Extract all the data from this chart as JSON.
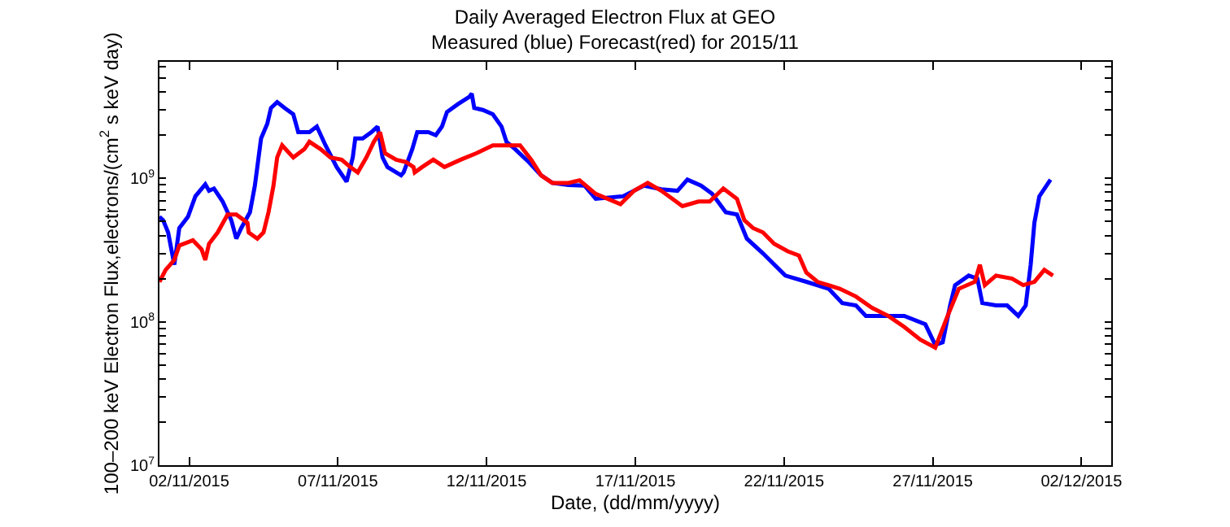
{
  "chart_data": {
    "type": "line",
    "title": "Daily Averaged Electron Flux at GEO",
    "subtitle": "Measured (blue) Forecast(red) for 2015/11",
    "xlabel": "Date, (dd/mm/yyyy)",
    "ylabel": "100–200 keV Electron Flux,electrons/(cm$^{2}$ s keV day)",
    "log": "y",
    "grid": false,
    "line_style": "solid",
    "xlim": [
      "2015-11-01",
      "2015-12-03"
    ],
    "xticks": [
      {
        "value": "2015-11-02",
        "label": "02/11/2015"
      },
      {
        "value": "2015-11-07",
        "label": "07/11/2015"
      },
      {
        "value": "2015-11-12",
        "label": "12/11/2015"
      },
      {
        "value": "2015-11-17",
        "label": "17/11/2015"
      },
      {
        "value": "2015-11-22",
        "label": "22/11/2015"
      },
      {
        "value": "2015-11-27",
        "label": "27/11/2015"
      },
      {
        "value": "2015-12-02",
        "label": "02/12/2015"
      }
    ],
    "ylim": [
      10000000.0,
      6500000000.0
    ],
    "yticks": [
      {
        "value": 10000000.0,
        "label": "10$^{7}$"
      },
      {
        "value": 20000000.0,
        "label": null
      },
      {
        "value": 30000000.0,
        "label": null
      },
      {
        "value": 40000000.0,
        "label": null
      },
      {
        "value": 50000000.0,
        "label": null
      },
      {
        "value": 60000000.0,
        "label": null
      },
      {
        "value": 70000000.0,
        "label": null
      },
      {
        "value": 80000000.0,
        "label": null
      },
      {
        "value": 90000000.0,
        "label": null
      },
      {
        "value": 100000000.0,
        "label": "10$^{8}$"
      },
      {
        "value": 200000000.0,
        "label": null
      },
      {
        "value": 300000000.0,
        "label": null
      },
      {
        "value": 400000000.0,
        "label": null
      },
      {
        "value": 500000000.0,
        "label": null
      },
      {
        "value": 600000000.0,
        "label": null
      },
      {
        "value": 700000000.0,
        "label": null
      },
      {
        "value": 800000000.0,
        "label": null
      },
      {
        "value": 900000000.0,
        "label": null
      },
      {
        "value": 1000000000.0,
        "label": "10$^{9}$"
      },
      {
        "value": 2000000000.0,
        "label": null
      },
      {
        "value": 3000000000.0,
        "label": null
      },
      {
        "value": 4000000000.0,
        "label": null
      },
      {
        "value": 5000000000.0,
        "label": null
      },
      {
        "value": 6000000000.0,
        "label": null
      }
    ],
    "series": [
      {
        "color": "#0000ff",
        "x": [
          "2015-11-01T00:00",
          "2015-11-01T03:00",
          "2015-11-01T07:00",
          "2015-11-01T12:00",
          "2015-11-01T16:00",
          "2015-11-01T23:00",
          "2015-11-02T05:00",
          "2015-11-02T13:00",
          "2015-11-02T16:00",
          "2015-11-02T20:00",
          "2015-11-03T03:00",
          "2015-11-03T10:00",
          "2015-11-03T14:00",
          "2015-11-03T18:00",
          "2015-11-04T01:00",
          "2015-11-04T05:00",
          "2015-11-04T10:00",
          "2015-11-04T15:00",
          "2015-11-04T18:00",
          "2015-11-04T23:00",
          "2015-11-05T05:00",
          "2015-11-05T12:00",
          "2015-11-05T16:00",
          "2015-11-06T01:00",
          "2015-11-06T07:00",
          "2015-11-06T14:00",
          "2015-11-06T23:00",
          "2015-11-07T07:00",
          "2015-11-07T12:00",
          "2015-11-07T14:00",
          "2015-11-07T20:00",
          "2015-11-08T03:00",
          "2015-11-08T08:00",
          "2015-11-08T12:00",
          "2015-11-08T16:00",
          "2015-11-09T03:00",
          "2015-11-09T05:00",
          "2015-11-09T12:00",
          "2015-11-09T16:00",
          "2015-11-10T01:00",
          "2015-11-10T07:00",
          "2015-11-10T12:00",
          "2015-11-10T16:00",
          "2015-11-11T01:00",
          "2015-11-11T10:00",
          "2015-11-11T12:00",
          "2015-11-11T14:00",
          "2015-11-11T21:00",
          "2015-11-12T05:00",
          "2015-11-12T12:00",
          "2015-11-12T16:00",
          "2015-11-12T23:00",
          "2015-11-13T10:00",
          "2015-11-13T20:00",
          "2015-11-14T05:00",
          "2015-11-14T18:00",
          "2015-11-15T07:00",
          "2015-11-15T16:00",
          "2015-11-16T14:00",
          "2015-11-17T07:00",
          "2015-11-17T21:00",
          "2015-11-18T10:00",
          "2015-11-18T18:00",
          "2015-11-19T05:00",
          "2015-11-19T14:00",
          "2015-11-20T01:00",
          "2015-11-20T10:00",
          "2015-11-20T18:00",
          "2015-11-21T07:00",
          "2015-11-22T01:00",
          "2015-11-22T18:00",
          "2015-11-23T12:00",
          "2015-11-23T23:00",
          "2015-11-24T10:00",
          "2015-11-24T18:00",
          "2015-11-26T01:00",
          "2015-11-26T18:00",
          "2015-11-27T02:00",
          "2015-11-27T08:00",
          "2015-11-27T14:00",
          "2015-11-27T18:00",
          "2015-11-28T05:00",
          "2015-11-28T12:00",
          "2015-11-28T16:00",
          "2015-11-29T03:00",
          "2015-11-29T12:00",
          "2015-11-29T21:00",
          "2015-11-30T03:00",
          "2015-11-30T07:00",
          "2015-11-30T10:00",
          "2015-11-30T14:00",
          "2015-11-30T23:00"
        ],
        "values": [
          540000000.0,
          510000000.0,
          420000000.0,
          250000000.0,
          450000000.0,
          540000000.0,
          750000000.0,
          910000000.0,
          820000000.0,
          850000000.0,
          690000000.0,
          510000000.0,
          380000000.0,
          450000000.0,
          580000000.0,
          890000000.0,
          1900000000.0,
          2400000000.0,
          3100000000.0,
          3400000000.0,
          3100000000.0,
          2800000000.0,
          2100000000.0,
          2100000000.0,
          2300000000.0,
          1700000000.0,
          1200000000.0,
          950000000.0,
          1400000000.0,
          1900000000.0,
          1900000000.0,
          2100000000.0,
          2300000000.0,
          1400000000.0,
          1200000000.0,
          1050000000.0,
          1100000000.0,
          1600000000.0,
          2100000000.0,
          2100000000.0,
          2000000000.0,
          2300000000.0,
          2900000000.0,
          3300000000.0,
          3700000000.0,
          3900000000.0,
          3100000000.0,
          3000000000.0,
          2800000000.0,
          2300000000.0,
          1800000000.0,
          1600000000.0,
          1300000000.0,
          1050000000.0,
          930000000.0,
          900000000.0,
          890000000.0,
          720000000.0,
          750000000.0,
          890000000.0,
          840000000.0,
          820000000.0,
          980000000.0,
          890000000.0,
          780000000.0,
          580000000.0,
          560000000.0,
          380000000.0,
          300000000.0,
          210000000.0,
          190000000.0,
          170000000.0,
          135000000.0,
          130000000.0,
          110000000.0,
          110000000.0,
          96000000.0,
          69000000.0,
          72000000.0,
          130000000.0,
          180000000.0,
          210000000.0,
          200000000.0,
          135000000.0,
          130000000.0,
          130000000.0,
          110000000.0,
          130000000.0,
          250000000.0,
          490000000.0,
          750000000.0,
          980000000.0
        ]
      },
      {
        "color": "#ff0000",
        "x": [
          "2015-11-01T00:00",
          "2015-11-01T05:00",
          "2015-11-01T12:00",
          "2015-11-01T16:00",
          "2015-11-02T03:00",
          "2015-11-02T10:00",
          "2015-11-02T13:00",
          "2015-11-02T16:00",
          "2015-11-02T23:00",
          "2015-11-03T07:00",
          "2015-11-03T14:00",
          "2015-11-03T23:00",
          "2015-11-04T00:00",
          "2015-11-04T07:00",
          "2015-11-04T12:00",
          "2015-11-04T16:00",
          "2015-11-04T20:00",
          "2015-11-04T23:00",
          "2015-11-05T03:00",
          "2015-11-05T12:00",
          "2015-11-05T21:00",
          "2015-11-06T01:00",
          "2015-11-06T10:00",
          "2015-11-06T18:00",
          "2015-11-07T03:00",
          "2015-11-07T10:00",
          "2015-11-07T16:00",
          "2015-11-07T23:00",
          "2015-11-08T05:00",
          "2015-11-08T10:00",
          "2015-11-08T14:00",
          "2015-11-08T23:00",
          "2015-11-09T07:00",
          "2015-11-09T13:00",
          "2015-11-09T14:00",
          "2015-11-09T20:00",
          "2015-11-10T05:00",
          "2015-11-10T14:00",
          "2015-11-11T03:00",
          "2015-11-11T16:00",
          "2015-11-12T05:00",
          "2015-11-12T18:00",
          "2015-11-13T03:00",
          "2015-11-13T12:00",
          "2015-11-13T20:00",
          "2015-11-14T05:00",
          "2015-11-14T18:00",
          "2015-11-15T03:00",
          "2015-11-15T16:00",
          "2015-11-16T12:00",
          "2015-11-16T23:00",
          "2015-11-17T10:00",
          "2015-11-17T21:00",
          "2015-11-18T14:00",
          "2015-11-19T03:00",
          "2015-11-19T12:00",
          "2015-11-19T23:00",
          "2015-11-20T10:00",
          "2015-11-20T16:00",
          "2015-11-20T23:00",
          "2015-11-21T07:00",
          "2015-11-21T16:00",
          "2015-11-22T03:00",
          "2015-11-22T12:00",
          "2015-11-22T18:00",
          "2015-11-23T03:00",
          "2015-11-23T21:00",
          "2015-11-24T10:00",
          "2015-11-24T23:00",
          "2015-11-25T12:00",
          "2015-11-26T01:00",
          "2015-11-26T14:00",
          "2015-11-27T02:00",
          "2015-11-27T12:00",
          "2015-11-27T21:00",
          "2015-11-28T10:00",
          "2015-11-28T14:00",
          "2015-11-28T18:00",
          "2015-11-29T03:00",
          "2015-11-29T16:00",
          "2015-11-30T01:00",
          "2015-11-30T10:00",
          "2015-11-30T18:00",
          "2015-12-01T01:00"
        ],
        "values": [
          190000000.0,
          230000000.0,
          270000000.0,
          340000000.0,
          370000000.0,
          320000000.0,
          270000000.0,
          350000000.0,
          420000000.0,
          560000000.0,
          560000000.0,
          490000000.0,
          420000000.0,
          380000000.0,
          420000000.0,
          580000000.0,
          890000000.0,
          1400000000.0,
          1700000000.0,
          1400000000.0,
          1600000000.0,
          1800000000.0,
          1600000000.0,
          1400000000.0,
          1350000000.0,
          1200000000.0,
          1100000000.0,
          1400000000.0,
          1800000000.0,
          2100000000.0,
          1500000000.0,
          1350000000.0,
          1300000000.0,
          1200000000.0,
          1100000000.0,
          1200000000.0,
          1350000000.0,
          1200000000.0,
          1350000000.0,
          1500000000.0,
          1700000000.0,
          1700000000.0,
          1700000000.0,
          1350000000.0,
          1050000000.0,
          930000000.0,
          930000000.0,
          970000000.0,
          780000000.0,
          660000000.0,
          820000000.0,
          930000000.0,
          820000000.0,
          640000000.0,
          690000000.0,
          690000000.0,
          850000000.0,
          720000000.0,
          510000000.0,
          450000000.0,
          420000000.0,
          350000000.0,
          310000000.0,
          290000000.0,
          220000000.0,
          190000000.0,
          170000000.0,
          150000000.0,
          125000000.0,
          110000000.0,
          92000000.0,
          75000000.0,
          66000000.0,
          110000000.0,
          170000000.0,
          190000000.0,
          250000000.0,
          180000000.0,
          210000000.0,
          200000000.0,
          180000000.0,
          190000000.0,
          230000000.0,
          210000000.0
        ]
      }
    ]
  }
}
